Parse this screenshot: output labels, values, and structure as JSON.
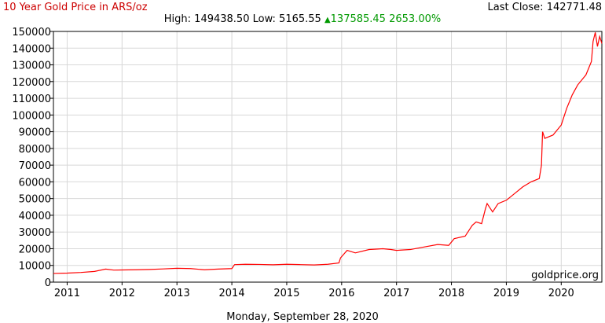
{
  "header": {
    "title": "10 Year Gold Price in ARS/oz",
    "last_close_label": "Last Close:",
    "last_close_value": "142771.48",
    "high_label": "High:",
    "high_value": "149438.50",
    "low_label": "Low:",
    "low_value": "5165.55",
    "change_value": "137585.45",
    "change_pct": "2653.00%"
  },
  "footer": {
    "date": "Monday, September 28, 2020",
    "watermark": "goldprice.org"
  },
  "colors": {
    "line": "#ff0000",
    "grid": "#d8d8d8",
    "axis": "#000000",
    "positive_change": "#009900"
  },
  "chart_data": {
    "type": "line",
    "title": "10 Year Gold Price in ARS/oz",
    "xlabel": "",
    "ylabel": "",
    "ylim": [
      0,
      150000
    ],
    "xlim": [
      2010.75,
      2020.74
    ],
    "y_ticks": [
      0,
      10000,
      20000,
      30000,
      40000,
      50000,
      60000,
      70000,
      80000,
      90000,
      100000,
      110000,
      120000,
      130000,
      140000,
      150000
    ],
    "y_tick_labels": [
      "0",
      "10000",
      "20000",
      "30000",
      "40000",
      "50000",
      "60000",
      "70000",
      "80000",
      "90000",
      "100000",
      "110000",
      "120000",
      "130000",
      "140000",
      "150000"
    ],
    "x_tick_labels": [
      "2011",
      "2012",
      "2013",
      "2014",
      "2015",
      "2016",
      "2017",
      "2018",
      "2019",
      "2020"
    ],
    "x_ticks": [
      2011,
      2012,
      2013,
      2014,
      2015,
      2016,
      2017,
      2018,
      2019,
      2020
    ],
    "grid": true,
    "series": [
      {
        "x": [
          2010.75,
          2011.0,
          2011.25,
          2011.5,
          2011.7,
          2011.85,
          2012.0,
          2012.25,
          2012.5,
          2012.75,
          2013.0,
          2013.25,
          2013.5,
          2013.75,
          2014.0,
          2014.05,
          2014.25,
          2014.5,
          2014.75,
          2015.0,
          2015.25,
          2015.5,
          2015.75,
          2015.95,
          2015.98,
          2016.1,
          2016.25,
          2016.5,
          2016.75,
          2016.9,
          2017.0,
          2017.25,
          2017.5,
          2017.75,
          2017.95,
          2018.05,
          2018.25,
          2018.38,
          2018.45,
          2018.55,
          2018.62,
          2018.65,
          2018.75,
          2018.85,
          2019.0,
          2019.15,
          2019.3,
          2019.45,
          2019.6,
          2019.64,
          2019.66,
          2019.7,
          2019.85,
          2020.0,
          2020.1,
          2020.2,
          2020.3,
          2020.45,
          2020.55,
          2020.58,
          2020.62,
          2020.66,
          2020.7,
          2020.74
        ],
        "values": [
          5200,
          5400,
          5800,
          6400,
          7800,
          7200,
          7300,
          7400,
          7600,
          7900,
          8300,
          8100,
          7400,
          7800,
          8100,
          10500,
          10700,
          10600,
          10400,
          10700,
          10500,
          10300,
          10700,
          11500,
          14500,
          19000,
          17500,
          19500,
          20000,
          19500,
          19000,
          19500,
          21000,
          22500,
          22000,
          26000,
          27500,
          34000,
          36000,
          35000,
          44000,
          47000,
          42000,
          47000,
          49000,
          53000,
          57000,
          60000,
          62000,
          70000,
          90000,
          86000,
          88000,
          94000,
          104000,
          112000,
          118000,
          124000,
          132000,
          144000,
          149400,
          141000,
          147000,
          142771
        ]
      }
    ]
  }
}
